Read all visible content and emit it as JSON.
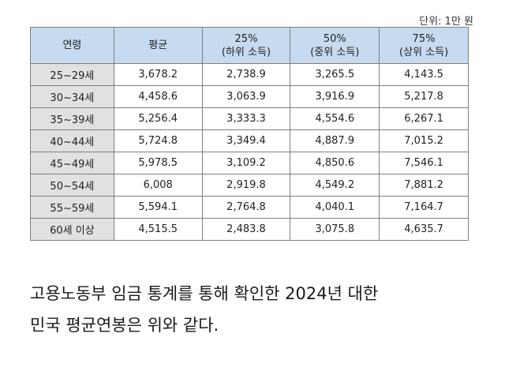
{
  "unit_label": "단위: 1만 원",
  "table": {
    "headers": [
      {
        "line1": "연령",
        "line2": ""
      },
      {
        "line1": "평균",
        "line2": ""
      },
      {
        "line1": "25%",
        "line2": "(하위 소득)"
      },
      {
        "line1": "50%",
        "line2": "(중위 소득)"
      },
      {
        "line1": "75%",
        "line2": "(상위 소득)"
      }
    ],
    "rows": [
      [
        "25~29세",
        "3,678.2",
        "2,738.9",
        "3,265.5",
        "4,143.5"
      ],
      [
        "30~34세",
        "4,458.6",
        "3,063.9",
        "3,916.9",
        "5,217.8"
      ],
      [
        "35~39세",
        "5,256.4",
        "3,333.3",
        "4,554.6",
        "6,267.1"
      ],
      [
        "40~44세",
        "5,724.8",
        "3,349.4",
        "4,887.9",
        "7,015.2"
      ],
      [
        "45~49세",
        "5,978.5",
        "3,109.2",
        "4,850.6",
        "7,546.1"
      ],
      [
        "50~54세",
        "6,008",
        "2,919.8",
        "4,549.2",
        "7,881.2"
      ],
      [
        "55~59세",
        "5,594.1",
        "2,764.8",
        "4,040.1",
        "7,164.7"
      ],
      [
        "60세 이상",
        "4,515.5",
        "2,483.8",
        "3,075.8",
        "4,635.7"
      ]
    ]
  },
  "caption": {
    "line1": "고용노동부 임금 통계를 통해 확인한 2024년 대한",
    "line2": "민국 평균연봉은 위와 같다."
  }
}
